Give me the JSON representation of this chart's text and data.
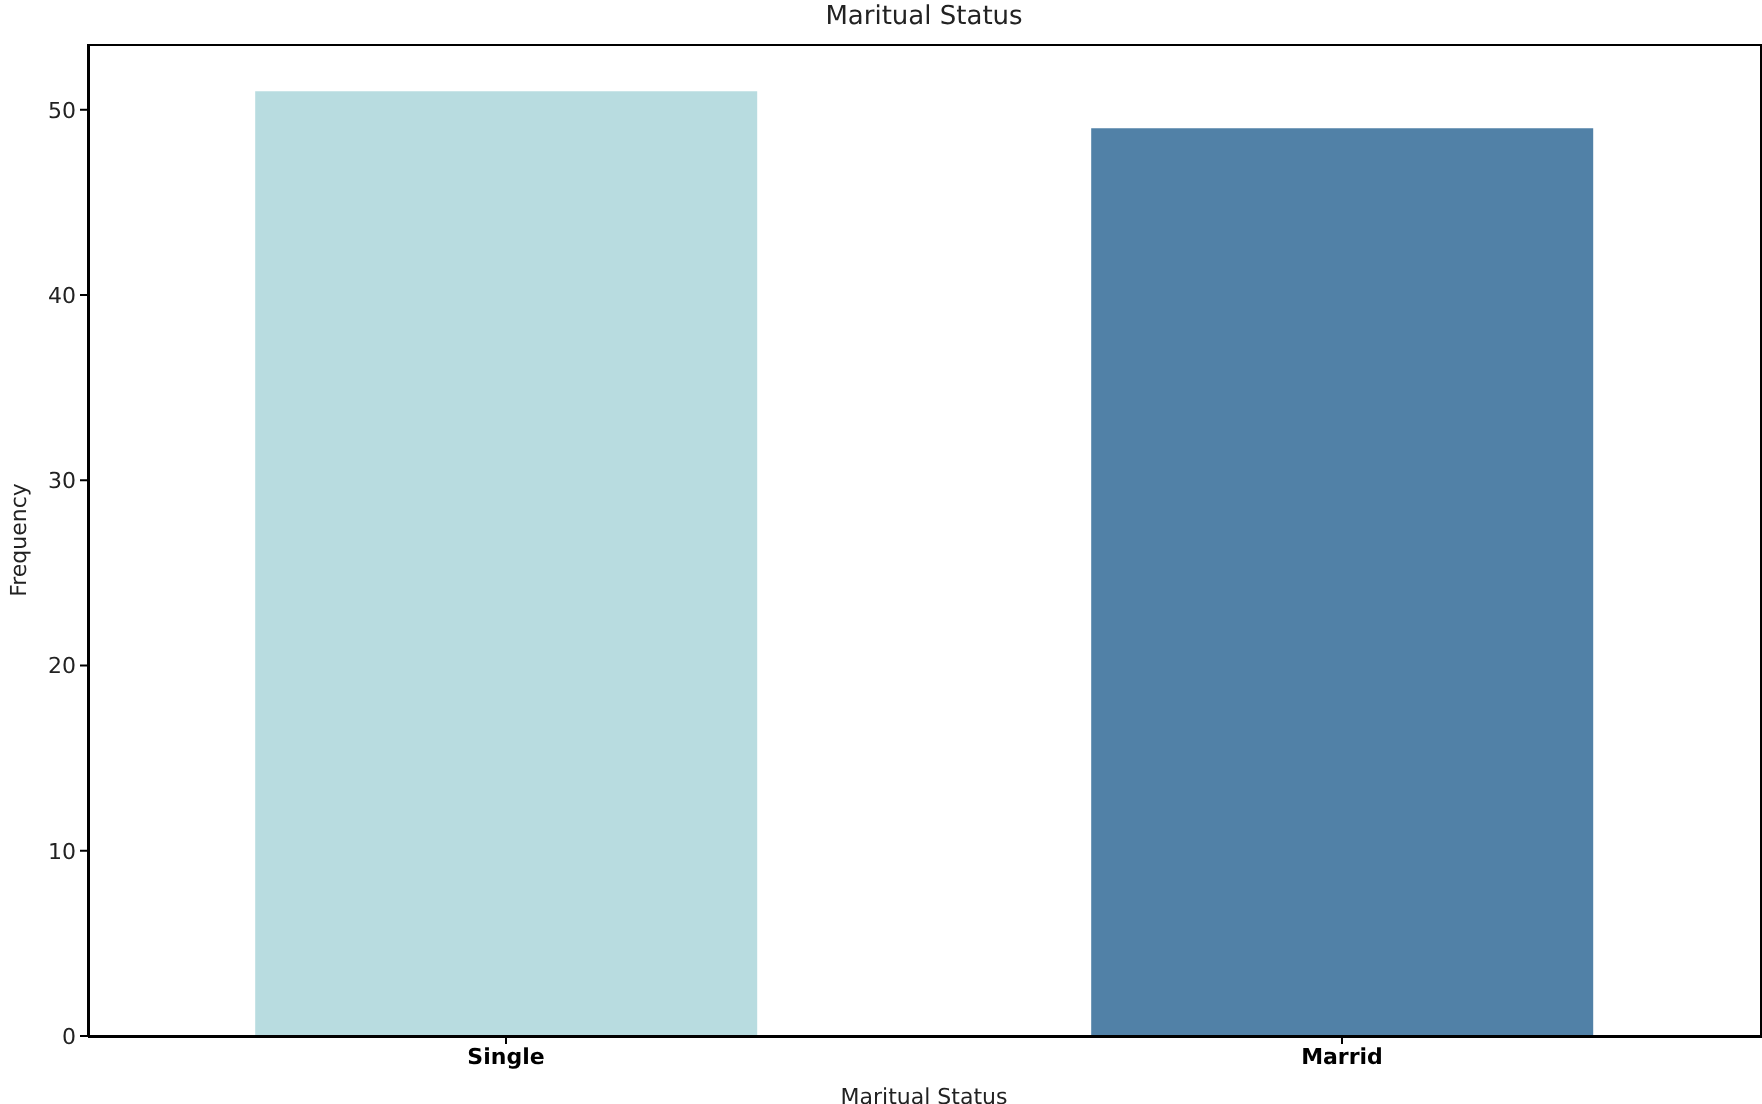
{
  "chart_data": {
    "type": "bar",
    "title": "Maritual Status",
    "xlabel": "Maritual Status",
    "ylabel": "Frequency",
    "categories": [
      "Single",
      "Marrid"
    ],
    "values": [
      51,
      49
    ],
    "colors": [
      "#b8dce0",
      "#5181a7"
    ],
    "ylim": [
      0,
      53.55
    ],
    "yticks": [
      0,
      10,
      20,
      30,
      40,
      50
    ]
  }
}
